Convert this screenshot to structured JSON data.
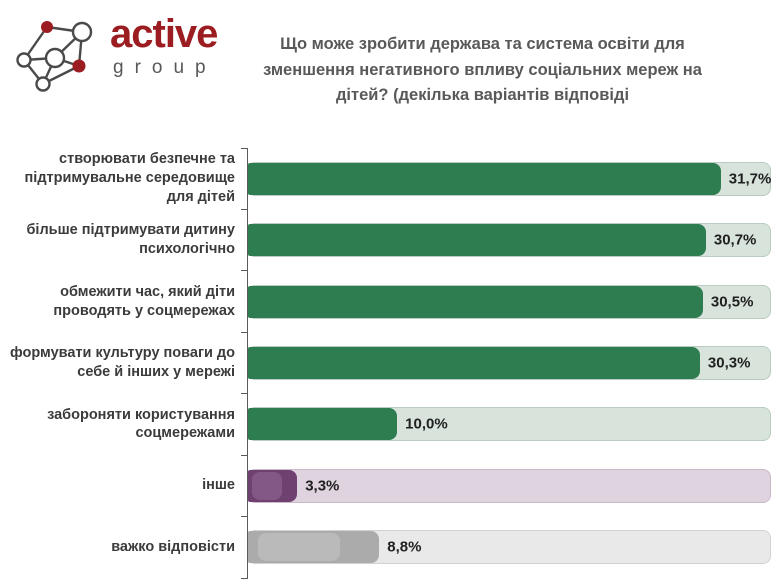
{
  "logo": {
    "brand": "active",
    "sub": "group",
    "brand_color": "#9c1d21",
    "sub_color": "#58595b",
    "icon": "network-graph-icon"
  },
  "header": {
    "title_lines": [
      "Що може зробити держава та система освіти для",
      "зменшення негативного впливу соціальних мереж на",
      "дітей? (декілька варіантів відповіді"
    ]
  },
  "chart_data": {
    "type": "bar",
    "orientation": "horizontal",
    "title": "Що може зробити держава та система освіти для зменшення негативного впливу соціальних мереж на дітей? (декілька варіантів відповіді",
    "xlabel": "",
    "ylabel": "",
    "xlim": [
      0,
      35
    ],
    "grid": false,
    "legend": false,
    "axis_color": "#595959",
    "categories": [
      "створювати безпечне та підтримувальне середовище для дітей",
      "більше підтримувати дитину психологічно",
      "обмежити час, який діти проводять у соцмережах",
      "формувати культуру поваги до себе й інших у мережі",
      "забороняти користування соцмережами",
      "інше",
      "важко відповісти"
    ],
    "values": [
      31.7,
      30.7,
      30.5,
      30.3,
      10.0,
      3.3,
      8.8
    ],
    "value_labels": [
      "31,7%",
      "30,7%",
      "30,5%",
      "30,3%",
      "10,0%",
      "3,3%",
      "8,8%"
    ],
    "bar_styles": [
      "green",
      "green",
      "green",
      "green",
      "green",
      "purple",
      "gray"
    ],
    "palette": {
      "green": {
        "bar": "#2e7d51",
        "track": "#d8e3dc",
        "track_border": "#b8ccbf"
      },
      "purple": {
        "bar": "#6f4170",
        "bar_highlight": "#8a5f8d",
        "track": "#ded3de",
        "track_border": "#c9b9c9"
      },
      "gray": {
        "bar": "#ababab",
        "bar_highlight": "#bfbfbf",
        "track": "#e9e9e9",
        "track_border": "#d2d2d2"
      }
    }
  }
}
